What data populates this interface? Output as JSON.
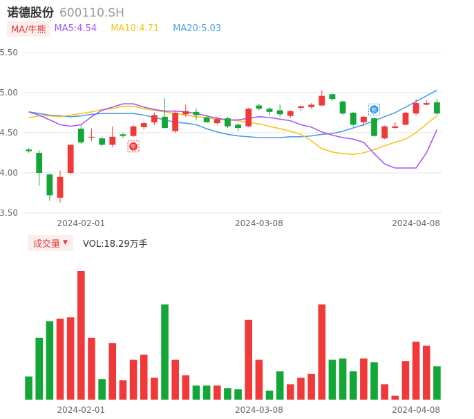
{
  "header": {
    "name": "诺德股份",
    "code": "600110.SH"
  },
  "ma_bar": {
    "toggle_label": "MA/牛熊",
    "ma5": "MA5:4.54",
    "ma10": "MA10:4.71",
    "ma20": "MA20:5.03"
  },
  "volume_bar": {
    "toggle_label": "成交量",
    "caret": "▼",
    "vol_text": "VOL:18.29万手"
  },
  "colors": {
    "up": "#f03a3a",
    "down": "#14a637",
    "ma5": "#a855f7",
    "ma10": "#f5c518",
    "ma20": "#4a9ee8",
    "grid": "#e5e5e5"
  },
  "chart_data": [
    {
      "type": "candlestick",
      "y_axis_ticks": [
        "5.50",
        "5.00",
        "4.50",
        "4.00",
        "3.50"
      ],
      "ylim": [
        3.5,
        5.5
      ],
      "x_tick_labels": [
        "2024-02-01",
        "2024-03-08",
        "2024-04-08"
      ],
      "x_tick_index": [
        5,
        22,
        37
      ],
      "markers": [
        {
          "label": "牛",
          "index": 10,
          "value": 4.33,
          "color": "#f03a3a"
        },
        {
          "label": "熊",
          "index": 33,
          "value": 4.79,
          "color": "#2b8fe8"
        }
      ],
      "candles": [
        [
          4.29,
          4.27,
          4.31,
          4.25
        ],
        [
          4.25,
          4.0,
          4.28,
          3.84
        ],
        [
          3.98,
          3.72,
          3.99,
          3.65
        ],
        [
          3.69,
          3.95,
          4.03,
          3.63
        ],
        [
          4.0,
          4.35,
          4.35,
          3.98
        ],
        [
          4.55,
          4.38,
          4.6,
          4.36
        ],
        [
          4.45,
          4.45,
          4.55,
          4.4
        ],
        [
          4.43,
          4.35,
          4.45,
          4.33
        ],
        [
          4.35,
          4.45,
          4.58,
          4.32
        ],
        [
          4.48,
          4.46,
          4.5,
          4.44
        ],
        [
          4.46,
          4.58,
          4.6,
          4.45
        ],
        [
          4.57,
          4.62,
          4.64,
          4.54
        ],
        [
          4.63,
          4.72,
          4.75,
          4.6
        ],
        [
          4.7,
          4.56,
          4.93,
          4.55
        ],
        [
          4.52,
          4.75,
          4.78,
          4.5
        ],
        [
          4.73,
          4.77,
          4.85,
          4.7
        ],
        [
          4.76,
          4.72,
          4.8,
          4.66
        ],
        [
          4.69,
          4.63,
          4.72,
          4.63
        ],
        [
          4.62,
          4.67,
          4.7,
          4.6
        ],
        [
          4.68,
          4.58,
          4.7,
          4.56
        ],
        [
          4.6,
          4.56,
          4.62,
          4.52
        ],
        [
          4.58,
          4.8,
          4.81,
          4.57
        ],
        [
          4.84,
          4.8,
          4.86,
          4.78
        ],
        [
          4.8,
          4.76,
          4.82,
          4.72
        ],
        [
          4.78,
          4.73,
          4.85,
          4.7
        ],
        [
          4.71,
          4.77,
          4.78,
          4.69
        ],
        [
          4.81,
          4.83,
          4.84,
          4.77
        ],
        [
          4.82,
          4.85,
          4.87,
          4.8
        ],
        [
          4.84,
          4.96,
          5.03,
          4.83
        ],
        [
          4.98,
          4.92,
          4.99,
          4.9
        ],
        [
          4.89,
          4.74,
          4.9,
          4.72
        ],
        [
          4.75,
          4.6,
          4.76,
          4.58
        ],
        [
          4.63,
          4.7,
          4.71,
          4.58
        ],
        [
          4.68,
          4.46,
          4.7,
          4.45
        ],
        [
          4.43,
          4.58,
          4.59,
          4.42
        ],
        [
          4.56,
          4.58,
          4.63,
          4.55
        ],
        [
          4.6,
          4.75,
          4.76,
          4.59
        ],
        [
          4.74,
          4.87,
          4.92,
          4.72
        ],
        [
          4.85,
          4.87,
          4.9,
          4.84
        ],
        [
          4.88,
          4.74,
          4.92,
          4.72
        ]
      ],
      "ma5": [
        4.76,
        4.72,
        4.66,
        4.6,
        4.58,
        4.6,
        4.7,
        4.78,
        4.82,
        4.86,
        4.86,
        4.82,
        4.79,
        4.77,
        4.77,
        4.76,
        4.74,
        4.71,
        4.68,
        4.66,
        4.66,
        4.68,
        4.7,
        4.69,
        4.67,
        4.65,
        4.6,
        4.57,
        4.51,
        4.47,
        4.44,
        4.42,
        4.38,
        4.24,
        4.11,
        4.06,
        4.06,
        4.06,
        4.25,
        4.54
      ],
      "ma10": [
        4.69,
        4.71,
        4.71,
        4.7,
        4.72,
        4.74,
        4.76,
        4.79,
        4.8,
        4.83,
        4.83,
        4.8,
        4.78,
        4.76,
        4.74,
        4.72,
        4.7,
        4.69,
        4.67,
        4.66,
        4.65,
        4.63,
        4.61,
        4.58,
        4.55,
        4.52,
        4.48,
        4.4,
        4.3,
        4.26,
        4.24,
        4.23,
        4.25,
        4.29,
        4.34,
        4.38,
        4.42,
        4.5,
        4.61,
        4.71
      ],
      "ma20": [
        4.76,
        4.74,
        4.72,
        4.71,
        4.7,
        4.71,
        4.73,
        4.74,
        4.74,
        4.74,
        4.74,
        4.72,
        4.69,
        4.66,
        4.63,
        4.62,
        4.6,
        4.55,
        4.51,
        4.48,
        4.46,
        4.45,
        4.44,
        4.44,
        4.44,
        4.45,
        4.45,
        4.46,
        4.48,
        4.49,
        4.52,
        4.56,
        4.6,
        4.65,
        4.7,
        4.75,
        4.82,
        4.89,
        4.96,
        5.03
      ]
    },
    {
      "type": "bar",
      "title": "成交量",
      "x_tick_labels": [
        "2024-02-01",
        "2024-03-08",
        "2024-04-08"
      ],
      "x_tick_index": [
        5,
        22,
        37
      ],
      "volume": [
        18,
        48,
        61,
        63,
        64,
        100,
        48,
        16,
        44,
        15,
        31,
        35,
        17,
        74,
        31,
        19,
        11,
        11,
        11,
        9,
        8,
        62,
        31,
        7,
        22,
        12,
        17,
        20,
        74,
        31,
        32,
        22,
        32,
        29,
        12,
        3,
        30,
        45,
        42,
        26
      ],
      "volume_up": [
        false,
        false,
        false,
        true,
        true,
        true,
        true,
        false,
        true,
        true,
        true,
        true,
        true,
        false,
        true,
        true,
        false,
        false,
        true,
        false,
        false,
        true,
        true,
        false,
        false,
        true,
        true,
        true,
        true,
        false,
        false,
        false,
        true,
        false,
        true,
        true,
        true,
        true,
        true,
        false
      ]
    }
  ]
}
